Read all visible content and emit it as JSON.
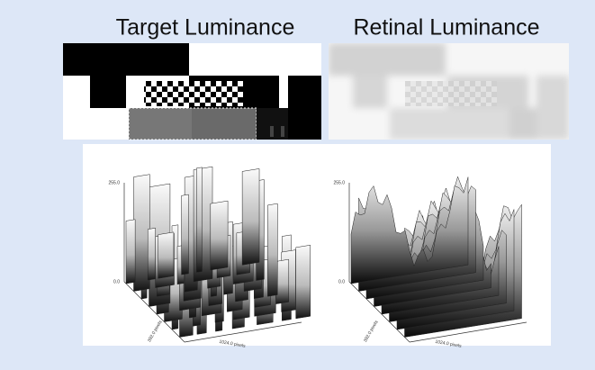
{
  "panels": [
    {
      "title": "Target Luminance",
      "plot": {
        "z_max": "255.0",
        "z_min": "0.0",
        "y_label": "392.0 pixels",
        "x_label": "1024.0 pixels"
      }
    },
    {
      "title": "Retinal Luminance",
      "plot": {
        "z_max": "255.0",
        "z_min": "0.0",
        "y_label": "392.0 pixels",
        "x_label": "1024.0 pixels"
      }
    }
  ]
}
